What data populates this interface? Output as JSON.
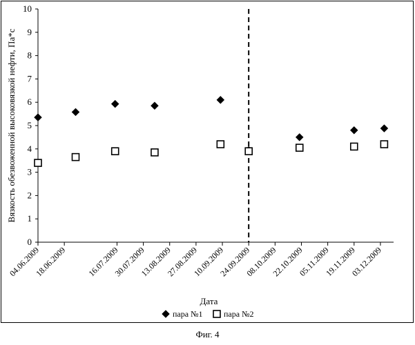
{
  "chart_data": {
    "type": "scatter",
    "ylabel": "Вязкость обезвоженной высоковязкой нефти, Па*с",
    "xlabel": "Дата",
    "ylim": [
      0,
      10
    ],
    "yticks": [
      "0",
      "1",
      "2",
      "3",
      "4",
      "5",
      "6",
      "7",
      "8",
      "9",
      "10"
    ],
    "xlim": [
      "04.06.2009",
      "10.12.2009"
    ],
    "xticks": [
      "04.06.2009",
      "18.06.2009",
      "16.07.2009",
      "30.07.2009",
      "13.08.2009",
      "27.08.2009",
      "10.09.2009",
      "24.09.2009",
      "08.10.2009",
      "22.10.2009",
      "05.11.2009",
      "19.11.2009",
      "03.12.2009"
    ],
    "grid": false,
    "legend_position": "bottom",
    "reference_line": {
      "x": "24.09.2009",
      "style": "dashed"
    },
    "series": [
      {
        "name": "пара №1",
        "marker": "diamond-filled",
        "points": [
          {
            "x": "04.06.2009",
            "y": 5.35
          },
          {
            "x": "24.06.2009",
            "y": 5.58
          },
          {
            "x": "15.07.2009",
            "y": 5.93
          },
          {
            "x": "05.08.2009",
            "y": 5.85
          },
          {
            "x": "09.09.2009",
            "y": 6.1
          },
          {
            "x": "24.09.2009",
            "y": 3.95
          },
          {
            "x": "21.10.2009",
            "y": 4.5
          },
          {
            "x": "19.11.2009",
            "y": 4.8
          },
          {
            "x": "05.12.2009",
            "y": 4.88
          }
        ]
      },
      {
        "name": "пара №2",
        "marker": "square-open",
        "points": [
          {
            "x": "04.06.2009",
            "y": 3.4
          },
          {
            "x": "24.06.2009",
            "y": 3.65
          },
          {
            "x": "15.07.2009",
            "y": 3.9
          },
          {
            "x": "05.08.2009",
            "y": 3.85
          },
          {
            "x": "09.09.2009",
            "y": 4.2
          },
          {
            "x": "24.09.2009",
            "y": 3.9
          },
          {
            "x": "21.10.2009",
            "y": 4.05
          },
          {
            "x": "19.11.2009",
            "y": 4.1
          },
          {
            "x": "05.12.2009",
            "y": 4.2
          }
        ]
      }
    ],
    "colors": {
      "marker": "#000000",
      "axis": "#000000",
      "frame": "#000000"
    }
  },
  "caption": "Фиг. 4"
}
